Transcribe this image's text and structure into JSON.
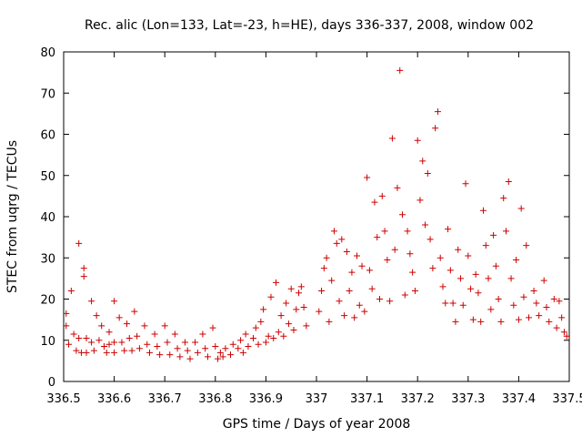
{
  "chart_data": {
    "type": "scatter",
    "title": "Rec. alic (Lon=133, Lat=-23, h=HE), days 336-337, 2008, window 002",
    "xlabel": "GPS time / Days of year 2008",
    "ylabel": "STEC from uqrg / TECUs",
    "xlim": [
      336.5,
      337.5
    ],
    "ylim": [
      0,
      80
    ],
    "x_ticks": [
      "336.5",
      "336.6",
      "336.7",
      "336.8",
      "336.9",
      "337",
      "337.1",
      "337.2",
      "337.3",
      "337.4",
      "337.5"
    ],
    "y_ticks": [
      "0",
      "10",
      "20",
      "30",
      "40",
      "50",
      "60",
      "70",
      "80"
    ],
    "grid": false,
    "legend": "none",
    "marker": "+",
    "color": "#cc0000",
    "points": [
      [
        336.505,
        16.5
      ],
      [
        336.505,
        13.5
      ],
      [
        336.51,
        9.0
      ],
      [
        336.515,
        22.0
      ],
      [
        336.52,
        11.5
      ],
      [
        336.525,
        7.5
      ],
      [
        336.53,
        33.5
      ],
      [
        336.53,
        10.5
      ],
      [
        336.535,
        7.0
      ],
      [
        336.54,
        27.5
      ],
      [
        336.54,
        25.5
      ],
      [
        336.545,
        10.5
      ],
      [
        336.545,
        7.0
      ],
      [
        336.555,
        19.5
      ],
      [
        336.555,
        9.5
      ],
      [
        336.56,
        7.5
      ],
      [
        336.565,
        16.0
      ],
      [
        336.57,
        10.0
      ],
      [
        336.575,
        13.5
      ],
      [
        336.58,
        8.5
      ],
      [
        336.585,
        7.0
      ],
      [
        336.59,
        12.0
      ],
      [
        336.59,
        9.0
      ],
      [
        336.6,
        19.5
      ],
      [
        336.6,
        9.5
      ],
      [
        336.6,
        7.0
      ],
      [
        336.61,
        15.5
      ],
      [
        336.615,
        9.5
      ],
      [
        336.62,
        7.5
      ],
      [
        336.625,
        14.0
      ],
      [
        336.63,
        10.5
      ],
      [
        336.635,
        7.5
      ],
      [
        336.64,
        17.0
      ],
      [
        336.645,
        11.0
      ],
      [
        336.65,
        8.0
      ],
      [
        336.66,
        13.5
      ],
      [
        336.665,
        9.0
      ],
      [
        336.67,
        7.0
      ],
      [
        336.68,
        11.5
      ],
      [
        336.685,
        8.5
      ],
      [
        336.69,
        6.5
      ],
      [
        336.7,
        13.5
      ],
      [
        336.705,
        9.5
      ],
      [
        336.71,
        6.5
      ],
      [
        336.72,
        11.5
      ],
      [
        336.725,
        8.0
      ],
      [
        336.73,
        6.0
      ],
      [
        336.74,
        9.5
      ],
      [
        336.745,
        7.5
      ],
      [
        336.75,
        5.5
      ],
      [
        336.76,
        9.5
      ],
      [
        336.765,
        7.0
      ],
      [
        336.775,
        11.5
      ],
      [
        336.78,
        8.0
      ],
      [
        336.785,
        6.0
      ],
      [
        336.795,
        13.0
      ],
      [
        336.8,
        8.5
      ],
      [
        336.805,
        5.5
      ],
      [
        336.81,
        7.0
      ],
      [
        336.815,
        6.0
      ],
      [
        336.82,
        8.0
      ],
      [
        336.83,
        6.5
      ],
      [
        336.835,
        9.0
      ],
      [
        336.845,
        8.0
      ],
      [
        336.85,
        10.0
      ],
      [
        336.855,
        7.0
      ],
      [
        336.86,
        11.5
      ],
      [
        336.865,
        8.5
      ],
      [
        336.875,
        10.5
      ],
      [
        336.88,
        13.0
      ],
      [
        336.885,
        9.0
      ],
      [
        336.89,
        14.5
      ],
      [
        336.895,
        17.5
      ],
      [
        336.9,
        9.5
      ],
      [
        336.905,
        11.0
      ],
      [
        336.91,
        20.5
      ],
      [
        336.915,
        10.5
      ],
      [
        336.92,
        24.0
      ],
      [
        336.925,
        12.0
      ],
      [
        336.93,
        16.0
      ],
      [
        336.935,
        11.0
      ],
      [
        336.94,
        19.0
      ],
      [
        336.945,
        14.0
      ],
      [
        336.95,
        22.5
      ],
      [
        336.955,
        12.5
      ],
      [
        336.96,
        17.5
      ],
      [
        336.965,
        21.5
      ],
      [
        336.97,
        23.0
      ],
      [
        336.975,
        18.0
      ],
      [
        336.98,
        13.5
      ],
      [
        337.005,
        17.0
      ],
      [
        337.01,
        22.0
      ],
      [
        337.015,
        27.5
      ],
      [
        337.02,
        30.0
      ],
      [
        337.025,
        14.5
      ],
      [
        337.03,
        24.5
      ],
      [
        337.035,
        36.5
      ],
      [
        337.04,
        33.5
      ],
      [
        337.045,
        19.5
      ],
      [
        337.05,
        34.5
      ],
      [
        337.055,
        16.0
      ],
      [
        337.06,
        31.5
      ],
      [
        337.065,
        22.0
      ],
      [
        337.07,
        26.5
      ],
      [
        337.075,
        15.5
      ],
      [
        337.08,
        30.5
      ],
      [
        337.085,
        18.5
      ],
      [
        337.09,
        28.0
      ],
      [
        337.095,
        17.0
      ],
      [
        337.1,
        49.5
      ],
      [
        337.105,
        27.0
      ],
      [
        337.11,
        22.5
      ],
      [
        337.115,
        43.5
      ],
      [
        337.12,
        35.0
      ],
      [
        337.125,
        20.0
      ],
      [
        337.13,
        45.0
      ],
      [
        337.135,
        36.5
      ],
      [
        337.14,
        29.5
      ],
      [
        337.145,
        19.5
      ],
      [
        337.15,
        59.0
      ],
      [
        337.155,
        32.0
      ],
      [
        337.16,
        47.0
      ],
      [
        337.165,
        75.5
      ],
      [
        337.17,
        40.5
      ],
      [
        337.175,
        21.0
      ],
      [
        337.18,
        36.5
      ],
      [
        337.185,
        31.0
      ],
      [
        337.19,
        26.5
      ],
      [
        337.195,
        22.0
      ],
      [
        337.2,
        58.5
      ],
      [
        337.205,
        44.0
      ],
      [
        337.21,
        53.5
      ],
      [
        337.215,
        38.0
      ],
      [
        337.22,
        50.5
      ],
      [
        337.225,
        34.5
      ],
      [
        337.23,
        27.5
      ],
      [
        337.235,
        61.5
      ],
      [
        337.24,
        65.5
      ],
      [
        337.245,
        30.0
      ],
      [
        337.25,
        23.0
      ],
      [
        337.255,
        19.0
      ],
      [
        337.26,
        37.0
      ],
      [
        337.265,
        27.0
      ],
      [
        337.27,
        19.0
      ],
      [
        337.275,
        14.5
      ],
      [
        337.28,
        32.0
      ],
      [
        337.285,
        25.0
      ],
      [
        337.29,
        18.5
      ],
      [
        337.295,
        48.0
      ],
      [
        337.3,
        30.5
      ],
      [
        337.305,
        22.5
      ],
      [
        337.31,
        15.0
      ],
      [
        337.315,
        26.0
      ],
      [
        337.32,
        21.5
      ],
      [
        337.325,
        14.5
      ],
      [
        337.33,
        41.5
      ],
      [
        337.335,
        33.0
      ],
      [
        337.34,
        25.0
      ],
      [
        337.345,
        17.5
      ],
      [
        337.35,
        35.5
      ],
      [
        337.355,
        28.0
      ],
      [
        337.36,
        20.0
      ],
      [
        337.365,
        14.5
      ],
      [
        337.37,
        44.5
      ],
      [
        337.375,
        36.5
      ],
      [
        337.38,
        48.5
      ],
      [
        337.385,
        25.0
      ],
      [
        337.39,
        18.5
      ],
      [
        337.395,
        29.5
      ],
      [
        337.4,
        15.0
      ],
      [
        337.405,
        42.0
      ],
      [
        337.41,
        20.5
      ],
      [
        337.415,
        33.0
      ],
      [
        337.42,
        15.5
      ],
      [
        337.43,
        22.0
      ],
      [
        337.435,
        19.0
      ],
      [
        337.44,
        16.0
      ],
      [
        337.45,
        24.5
      ],
      [
        337.455,
        18.0
      ],
      [
        337.46,
        14.5
      ],
      [
        337.47,
        20.0
      ],
      [
        337.475,
        13.0
      ],
      [
        337.48,
        19.5
      ],
      [
        337.485,
        15.5
      ],
      [
        337.49,
        12.0
      ],
      [
        337.495,
        11.0
      ]
    ]
  }
}
